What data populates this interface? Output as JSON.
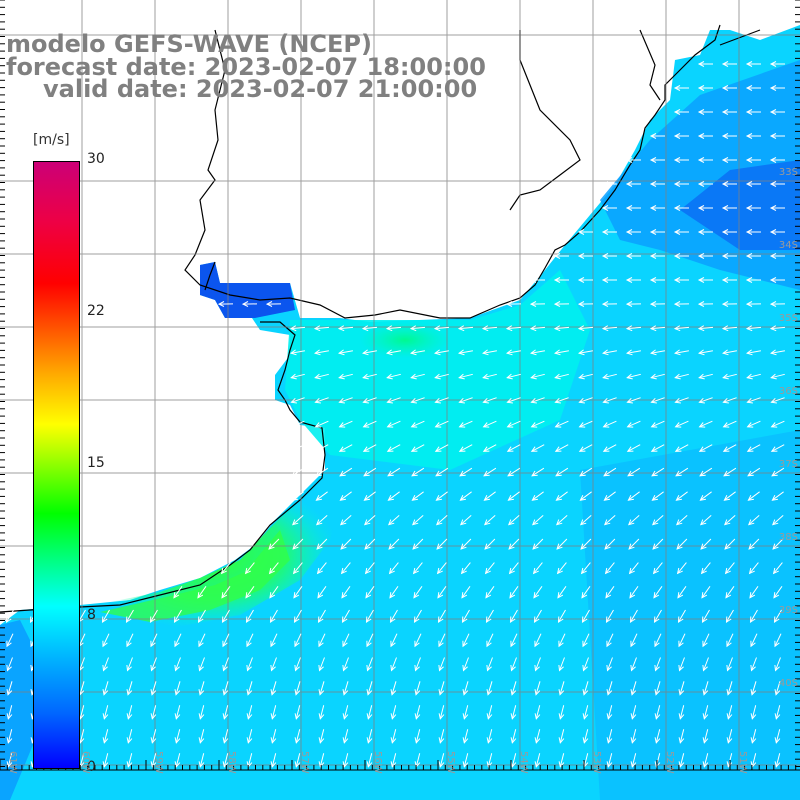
{
  "title": {
    "line1": "modelo GEFS-WAVE (NCEP)",
    "line2": "forecast date: 2023-02-07 18:00:00",
    "line3": "valid date: 2023-02-07 21:00:00"
  },
  "colorbar": {
    "units": "[m/s]",
    "min": 0,
    "max": 30,
    "ticks": [
      {
        "value": 30,
        "label": "30"
      },
      {
        "value": 22,
        "label": "22"
      },
      {
        "value": 15,
        "label": "15"
      },
      {
        "value": 8,
        "label": "8"
      },
      {
        "value": 0,
        "label": "0"
      }
    ]
  },
  "latitude_labels": [
    "33S",
    "34S",
    "35S",
    "36S",
    "37S",
    "38S",
    "39S",
    "40S"
  ],
  "longitude_labels": [
    "61W",
    "60W",
    "59W",
    "58W",
    "57W",
    "56W",
    "55W",
    "54W",
    "53W",
    "52W",
    "51W"
  ],
  "colors": {
    "land": "#ffffff",
    "coast": "#000000",
    "grid": "#808080",
    "wind_arrow": "#ffffff",
    "title_text": "#808080"
  },
  "map": {
    "field": "wind speed and direction",
    "arrow_direction": "from northeast in north, from north in south",
    "max_speed_region": "green band near coast around 39S 57W"
  }
}
